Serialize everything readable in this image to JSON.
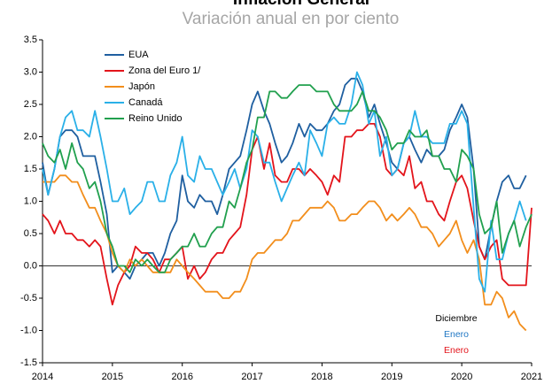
{
  "chart_data": {
    "type": "line",
    "title": "Inflación General",
    "subtitle": "Variación anual en por ciento",
    "xlim": [
      2014,
      2021
    ],
    "xticks": [
      2014,
      2015,
      2016,
      2017,
      2018,
      2019,
      2020,
      2021
    ],
    "ylim": [
      -1.5,
      3.5
    ],
    "yticks": [
      {
        "value": -1.5,
        "label": "-1.5"
      },
      {
        "value": -1,
        "label": "-1.0"
      },
      -0.5,
      {
        "value": 0,
        "label": "0.0"
      },
      0.5,
      {
        "value": 1,
        "label": "1.0"
      },
      1.5,
      {
        "value": 2,
        "label": "2.0"
      },
      2.5,
      {
        "value": 3,
        "label": "3.0"
      },
      3.5
    ],
    "grid": false,
    "zero_line": true,
    "legend": "upper left",
    "x": [
      2014,
      2014.08,
      2014.17,
      2014.25,
      2014.33,
      2014.42,
      2014.5,
      2014.58,
      2014.67,
      2014.75,
      2014.83,
      2014.92,
      2015,
      2015.08,
      2015.17,
      2015.25,
      2015.33,
      2015.42,
      2015.5,
      2015.58,
      2015.67,
      2015.75,
      2015.83,
      2015.92,
      2016,
      2016.08,
      2016.17,
      2016.25,
      2016.33,
      2016.42,
      2016.5,
      2016.58,
      2016.67,
      2016.75,
      2016.83,
      2016.92,
      2017,
      2017.08,
      2017.17,
      2017.25,
      2017.33,
      2017.42,
      2017.5,
      2017.58,
      2017.67,
      2017.75,
      2017.83,
      2017.92,
      2018,
      2018.08,
      2018.17,
      2018.25,
      2018.33,
      2018.42,
      2018.5,
      2018.58,
      2018.67,
      2018.75,
      2018.83,
      2018.92,
      2019,
      2019.08,
      2019.17,
      2019.25,
      2019.33,
      2019.42,
      2019.5,
      2019.58,
      2019.67,
      2019.75,
      2019.83,
      2019.92,
      2020,
      2020.08,
      2020.17,
      2020.25,
      2020.33,
      2020.42,
      2020.5,
      2020.58,
      2020.67,
      2020.75,
      2020.83,
      2020.92,
      2021
    ],
    "series": [
      {
        "name": "EUA",
        "color": "#1f5fa0",
        "values": [
          1.6,
          1.1,
          1.5,
          2.0,
          2.1,
          2.1,
          2.0,
          1.7,
          1.7,
          1.7,
          1.3,
          0.8,
          -0.1,
          0.0,
          -0.1,
          -0.2,
          0.0,
          0.1,
          0.2,
          0.2,
          0.0,
          0.2,
          0.5,
          0.7,
          1.4,
          1.0,
          0.9,
          1.1,
          1.0,
          1.0,
          0.8,
          1.1,
          1.5,
          1.6,
          1.7,
          2.1,
          2.5,
          2.7,
          2.4,
          2.2,
          1.9,
          1.6,
          1.7,
          1.9,
          2.2,
          2.0,
          2.2,
          2.1,
          2.1,
          2.2,
          2.4,
          2.5,
          2.8,
          2.9,
          2.9,
          2.7,
          2.3,
          2.5,
          2.2,
          1.9,
          1.6,
          1.5,
          1.9,
          2.0,
          1.8,
          1.6,
          1.8,
          1.7,
          1.7,
          1.8,
          2.1,
          2.3,
          2.5,
          2.3,
          1.5,
          0.3,
          0.1,
          0.6,
          1.0,
          1.3,
          1.4,
          1.2,
          1.2,
          1.4,
          null
        ]
      },
      {
        "name": "Zona del Euro 1/",
        "color": "#e3141b",
        "values": [
          0.8,
          0.7,
          0.5,
          0.7,
          0.5,
          0.5,
          0.4,
          0.4,
          0.3,
          0.4,
          0.3,
          -0.2,
          -0.6,
          -0.3,
          -0.1,
          0.0,
          0.3,
          0.2,
          0.2,
          0.1,
          -0.1,
          0.1,
          0.1,
          0.2,
          0.3,
          -0.2,
          0.0,
          -0.2,
          -0.1,
          0.1,
          0.2,
          0.2,
          0.4,
          0.5,
          0.6,
          1.1,
          1.8,
          2.0,
          1.5,
          1.9,
          1.4,
          1.3,
          1.3,
          1.5,
          1.5,
          1.4,
          1.5,
          1.4,
          1.3,
          1.1,
          1.4,
          1.3,
          2.0,
          2.0,
          2.1,
          2.1,
          2.2,
          2.2,
          2.0,
          1.5,
          1.4,
          1.5,
          1.4,
          1.7,
          1.2,
          1.3,
          1.0,
          1.0,
          0.8,
          0.7,
          1.0,
          1.3,
          1.4,
          1.2,
          0.7,
          0.3,
          0.1,
          0.3,
          0.4,
          -0.2,
          -0.3,
          -0.3,
          -0.3,
          -0.3,
          0.9
        ]
      },
      {
        "name": "Japón",
        "color": "#f28e1c",
        "values": [
          1.3,
          1.3,
          1.3,
          1.4,
          1.4,
          1.3,
          1.3,
          1.1,
          0.9,
          0.9,
          0.7,
          0.5,
          0.2,
          0.0,
          -0.1,
          0.1,
          0.0,
          0.1,
          0.0,
          -0.1,
          -0.1,
          -0.1,
          -0.1,
          0.1,
          0.0,
          -0.1,
          -0.2,
          -0.3,
          -0.4,
          -0.4,
          -0.4,
          -0.5,
          -0.5,
          -0.4,
          -0.4,
          -0.2,
          0.1,
          0.2,
          0.2,
          0.3,
          0.4,
          0.4,
          0.5,
          0.7,
          0.7,
          0.8,
          0.9,
          0.9,
          0.9,
          1.0,
          0.9,
          0.7,
          0.7,
          0.8,
          0.8,
          0.9,
          1.0,
          1.0,
          0.9,
          0.7,
          0.8,
          0.7,
          0.8,
          0.9,
          0.8,
          0.6,
          0.6,
          0.5,
          0.3,
          0.4,
          0.5,
          0.7,
          0.4,
          0.2,
          0.4,
          0.1,
          -0.6,
          -0.6,
          -0.4,
          -0.5,
          -0.8,
          -0.7,
          -0.9,
          -1.0,
          null
        ]
      },
      {
        "name": "Canadá",
        "color": "#2ab0e8",
        "values": [
          1.5,
          1.1,
          1.5,
          2.0,
          2.3,
          2.4,
          2.1,
          2.1,
          2.0,
          2.4,
          2.0,
          1.5,
          1.0,
          1.0,
          1.2,
          0.8,
          0.9,
          1.0,
          1.3,
          1.3,
          1.0,
          1.0,
          1.4,
          1.6,
          2.0,
          1.4,
          1.3,
          1.7,
          1.5,
          1.5,
          1.3,
          1.1,
          1.3,
          1.5,
          1.2,
          1.5,
          2.1,
          2.0,
          1.6,
          1.6,
          1.3,
          1.0,
          1.2,
          1.4,
          1.6,
          1.4,
          2.1,
          1.9,
          1.7,
          2.2,
          2.3,
          2.2,
          2.2,
          2.5,
          3.0,
          2.8,
          2.2,
          2.4,
          1.7,
          2.0,
          1.4,
          1.5,
          1.9,
          2.0,
          2.4,
          2.0,
          2.0,
          1.9,
          1.9,
          1.9,
          2.2,
          2.2,
          2.4,
          2.2,
          0.9,
          -0.2,
          -0.4,
          0.7,
          0.1,
          0.1,
          0.5,
          0.7,
          1.0,
          0.7,
          null
        ]
      },
      {
        "name": "Reino Unido",
        "color": "#21a04e",
        "values": [
          1.9,
          1.7,
          1.6,
          1.8,
          1.5,
          1.9,
          1.6,
          1.5,
          1.2,
          1.3,
          1.0,
          0.5,
          0.3,
          0.0,
          0.0,
          -0.1,
          0.1,
          0.0,
          0.1,
          0.0,
          -0.1,
          -0.1,
          0.1,
          0.2,
          0.3,
          0.3,
          0.5,
          0.3,
          0.3,
          0.5,
          0.6,
          0.6,
          1.0,
          0.9,
          1.2,
          1.6,
          1.8,
          2.3,
          2.3,
          2.7,
          2.7,
          2.6,
          2.6,
          2.7,
          2.8,
          2.8,
          2.8,
          2.7,
          2.7,
          2.7,
          2.5,
          2.4,
          2.4,
          2.4,
          2.5,
          2.7,
          2.4,
          2.4,
          2.3,
          2.1,
          1.8,
          1.9,
          1.9,
          2.1,
          2.0,
          2.0,
          2.1,
          1.7,
          1.7,
          1.5,
          1.5,
          1.3,
          1.8,
          1.7,
          1.5,
          0.8,
          0.5,
          0.6,
          1.0,
          0.2,
          0.5,
          0.7,
          0.3,
          0.6,
          0.8
        ]
      }
    ],
    "annotations": [
      {
        "text": "Diciembre",
        "color": "#000000"
      },
      {
        "text": "Enero",
        "color": "#1f77c4"
      },
      {
        "text": "Enero",
        "color": "#e3141b"
      }
    ]
  }
}
